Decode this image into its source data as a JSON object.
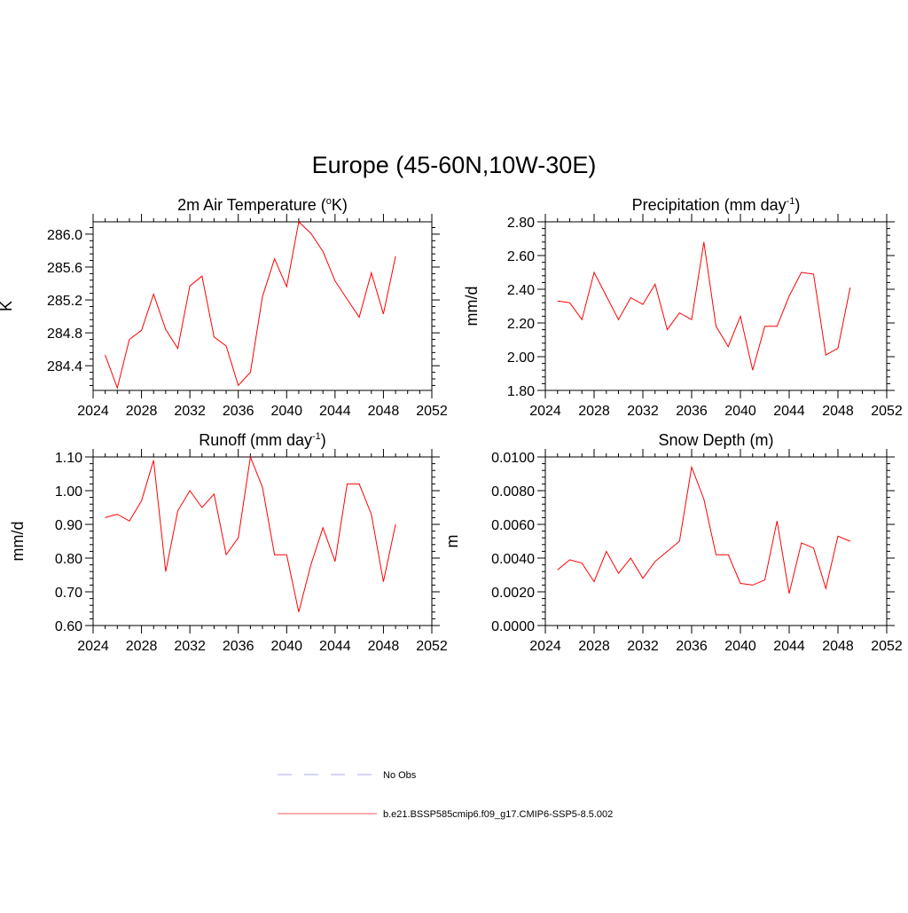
{
  "figure": {
    "title": "Europe (45-60N,10W-30E)"
  },
  "chart_data": [
    {
      "id": "temp",
      "type": "line",
      "title": "2m Air Temperature (",
      "title_sup": "o",
      "title_tail": "K)",
      "ylabel": "K",
      "xlim": [
        2024,
        2052
      ],
      "ylim": [
        284.1,
        286.15
      ],
      "xticks": [
        2024,
        2028,
        2032,
        2036,
        2040,
        2044,
        2048,
        2052
      ],
      "yticks": [
        284.4,
        284.8,
        285.2,
        285.6,
        286.0
      ],
      "ytick_labels": [
        "284.4",
        "284.8",
        "285.2",
        "285.6",
        "286.0"
      ],
      "series": [
        {
          "name": "b.e21.BSSP585cmip6.f09_g17.CMIP6-SSP5-8.5.002",
          "color": "#ff0000",
          "x": [
            2025,
            2026,
            2027,
            2028,
            2029,
            2030,
            2031,
            2032,
            2033,
            2034,
            2035,
            2036,
            2037,
            2038,
            2039,
            2040,
            2041,
            2042,
            2043,
            2044,
            2045,
            2046,
            2047,
            2048,
            2049
          ],
          "y": [
            284.53,
            284.13,
            284.72,
            284.83,
            285.27,
            284.84,
            284.61,
            285.37,
            285.49,
            284.75,
            284.64,
            284.16,
            284.32,
            285.24,
            285.7,
            285.36,
            286.15,
            286.01,
            285.79,
            285.43,
            285.21,
            284.99,
            285.53,
            285.03,
            285.73
          ]
        }
      ]
    },
    {
      "id": "precip",
      "type": "line",
      "title": "Precipitation (mm day",
      "title_sup": "-1",
      "title_tail": ")",
      "ylabel": "mm/d",
      "xlim": [
        2024,
        2052
      ],
      "ylim": [
        1.8,
        2.8
      ],
      "xticks": [
        2024,
        2028,
        2032,
        2036,
        2040,
        2044,
        2048,
        2052
      ],
      "yticks": [
        1.8,
        2.0,
        2.2,
        2.4,
        2.6,
        2.8
      ],
      "ytick_labels": [
        "1.80",
        "2.00",
        "2.20",
        "2.40",
        "2.60",
        "2.80"
      ],
      "series": [
        {
          "name": "b.e21.BSSP585cmip6.f09_g17.CMIP6-SSP5-8.5.002",
          "color": "#ff0000",
          "x": [
            2025,
            2026,
            2027,
            2028,
            2029,
            2030,
            2031,
            2032,
            2033,
            2034,
            2035,
            2036,
            2037,
            2038,
            2039,
            2040,
            2041,
            2042,
            2043,
            2044,
            2045,
            2046,
            2047,
            2048,
            2049
          ],
          "y": [
            2.33,
            2.32,
            2.22,
            2.5,
            2.36,
            2.22,
            2.35,
            2.31,
            2.43,
            2.16,
            2.26,
            2.22,
            2.68,
            2.18,
            2.06,
            2.24,
            1.92,
            2.18,
            2.18,
            2.36,
            2.5,
            2.49,
            2.01,
            2.05,
            2.41
          ]
        }
      ]
    },
    {
      "id": "runoff",
      "type": "line",
      "title": "Runoff (mm day",
      "title_sup": "-1",
      "title_tail": ")",
      "ylabel": "mm/d",
      "xlim": [
        2024,
        2052
      ],
      "ylim": [
        0.6,
        1.1
      ],
      "xticks": [
        2024,
        2028,
        2032,
        2036,
        2040,
        2044,
        2048,
        2052
      ],
      "yticks": [
        0.6,
        0.7,
        0.8,
        0.9,
        1.0,
        1.1
      ],
      "ytick_labels": [
        "0.60",
        "0.70",
        "0.80",
        "0.90",
        "1.00",
        "1.10"
      ],
      "series": [
        {
          "name": "b.e21.BSSP585cmip6.f09_g17.CMIP6-SSP5-8.5.002",
          "color": "#ff0000",
          "x": [
            2025,
            2026,
            2027,
            2028,
            2029,
            2030,
            2031,
            2032,
            2033,
            2034,
            2035,
            2036,
            2037,
            2038,
            2039,
            2040,
            2041,
            2042,
            2043,
            2044,
            2045,
            2046,
            2047,
            2048,
            2049
          ],
          "y": [
            0.92,
            0.93,
            0.91,
            0.97,
            1.09,
            0.76,
            0.94,
            1.0,
            0.95,
            0.99,
            0.81,
            0.86,
            1.1,
            1.01,
            0.81,
            0.81,
            0.64,
            0.78,
            0.89,
            0.79,
            1.02,
            1.02,
            0.93,
            0.73,
            0.9
          ]
        }
      ]
    },
    {
      "id": "snow",
      "type": "line",
      "title": "Snow Depth (m)",
      "title_sup": "",
      "title_tail": "",
      "ylabel": "m",
      "xlim": [
        2024,
        2052
      ],
      "ylim": [
        0.0,
        0.01
      ],
      "xticks": [
        2024,
        2028,
        2032,
        2036,
        2040,
        2044,
        2048,
        2052
      ],
      "yticks": [
        0.0,
        0.002,
        0.004,
        0.006,
        0.008,
        0.01
      ],
      "ytick_labels": [
        "0.0000",
        "0.0020",
        "0.0040",
        "0.0060",
        "0.0080",
        "0.0100"
      ],
      "series": [
        {
          "name": "b.e21.BSSP585cmip6.f09_g17.CMIP6-SSP5-8.5.002",
          "color": "#ff0000",
          "x": [
            2025,
            2026,
            2027,
            2028,
            2029,
            2030,
            2031,
            2032,
            2033,
            2034,
            2035,
            2036,
            2037,
            2038,
            2039,
            2040,
            2041,
            2042,
            2043,
            2044,
            2045,
            2046,
            2047,
            2048,
            2049
          ],
          "y": [
            0.0033,
            0.0039,
            0.0037,
            0.0026,
            0.0044,
            0.0031,
            0.004,
            0.0028,
            0.0038,
            0.0044,
            0.005,
            0.0094,
            0.0075,
            0.0042,
            0.0042,
            0.0025,
            0.0024,
            0.0027,
            0.0062,
            0.0019,
            0.0049,
            0.0046,
            0.0022,
            0.0053,
            0.005
          ]
        }
      ]
    }
  ],
  "legend": [
    {
      "label": "No Obs",
      "color": "#aaaaee",
      "style": "dashed"
    },
    {
      "label": "b.e21.BSSP585cmip6.f09_g17.CMIP6-SSP5-8.5.002",
      "color": "#ff5a5a",
      "style": "solid"
    }
  ]
}
